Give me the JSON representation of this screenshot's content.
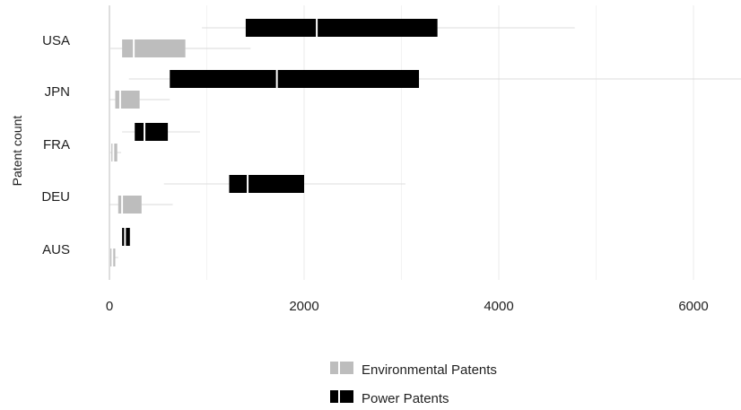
{
  "chart_data": {
    "type": "boxplot",
    "orientation": "horizontal",
    "ylabel": "Patent count",
    "xlabel": "",
    "xlim": [
      0,
      6500
    ],
    "xticks": [
      0,
      2000,
      4000,
      6000
    ],
    "x_tick_labels": [
      "0",
      "2000",
      "4000",
      "6000"
    ],
    "grid": true,
    "legend_position": "bottom",
    "categories": [
      "USA",
      "JPN",
      "FRA",
      "DEU",
      "AUS"
    ],
    "series": [
      {
        "name": "Environmental Patents",
        "color": "#bdbdbd",
        "boxes": [
          {
            "category": "USA",
            "whisker_low": 10,
            "q1": 130,
            "median": 250,
            "q3": 780,
            "whisker_high": 1450
          },
          {
            "category": "JPN",
            "whisker_low": 5,
            "q1": 60,
            "median": 110,
            "q3": 310,
            "whisker_high": 620
          },
          {
            "category": "FRA",
            "whisker_low": 0,
            "q1": 20,
            "median": 40,
            "q3": 80,
            "whisker_high": 120
          },
          {
            "category": "DEU",
            "whisker_low": 5,
            "q1": 90,
            "median": 130,
            "q3": 330,
            "whisker_high": 650
          },
          {
            "category": "AUS",
            "whisker_low": 0,
            "q1": 10,
            "median": 30,
            "q3": 60,
            "whisker_high": 90
          }
        ]
      },
      {
        "name": "Power Patents",
        "color": "#000000",
        "boxes": [
          {
            "category": "USA",
            "whisker_low": 950,
            "q1": 1400,
            "median": 2130,
            "q3": 3370,
            "whisker_high": 4780
          },
          {
            "category": "JPN",
            "whisker_low": 200,
            "q1": 620,
            "median": 1720,
            "q3": 3180,
            "whisker_high": 6500
          },
          {
            "category": "FRA",
            "whisker_low": 130,
            "q1": 260,
            "median": 360,
            "q3": 600,
            "whisker_high": 930
          },
          {
            "category": "DEU",
            "whisker_low": 560,
            "q1": 1230,
            "median": 1420,
            "q3": 2000,
            "whisker_high": 3040
          },
          {
            "category": "AUS",
            "whisker_low": 130,
            "q1": 130,
            "median": 160,
            "q3": 210,
            "whisker_high": 210
          }
        ]
      }
    ]
  }
}
